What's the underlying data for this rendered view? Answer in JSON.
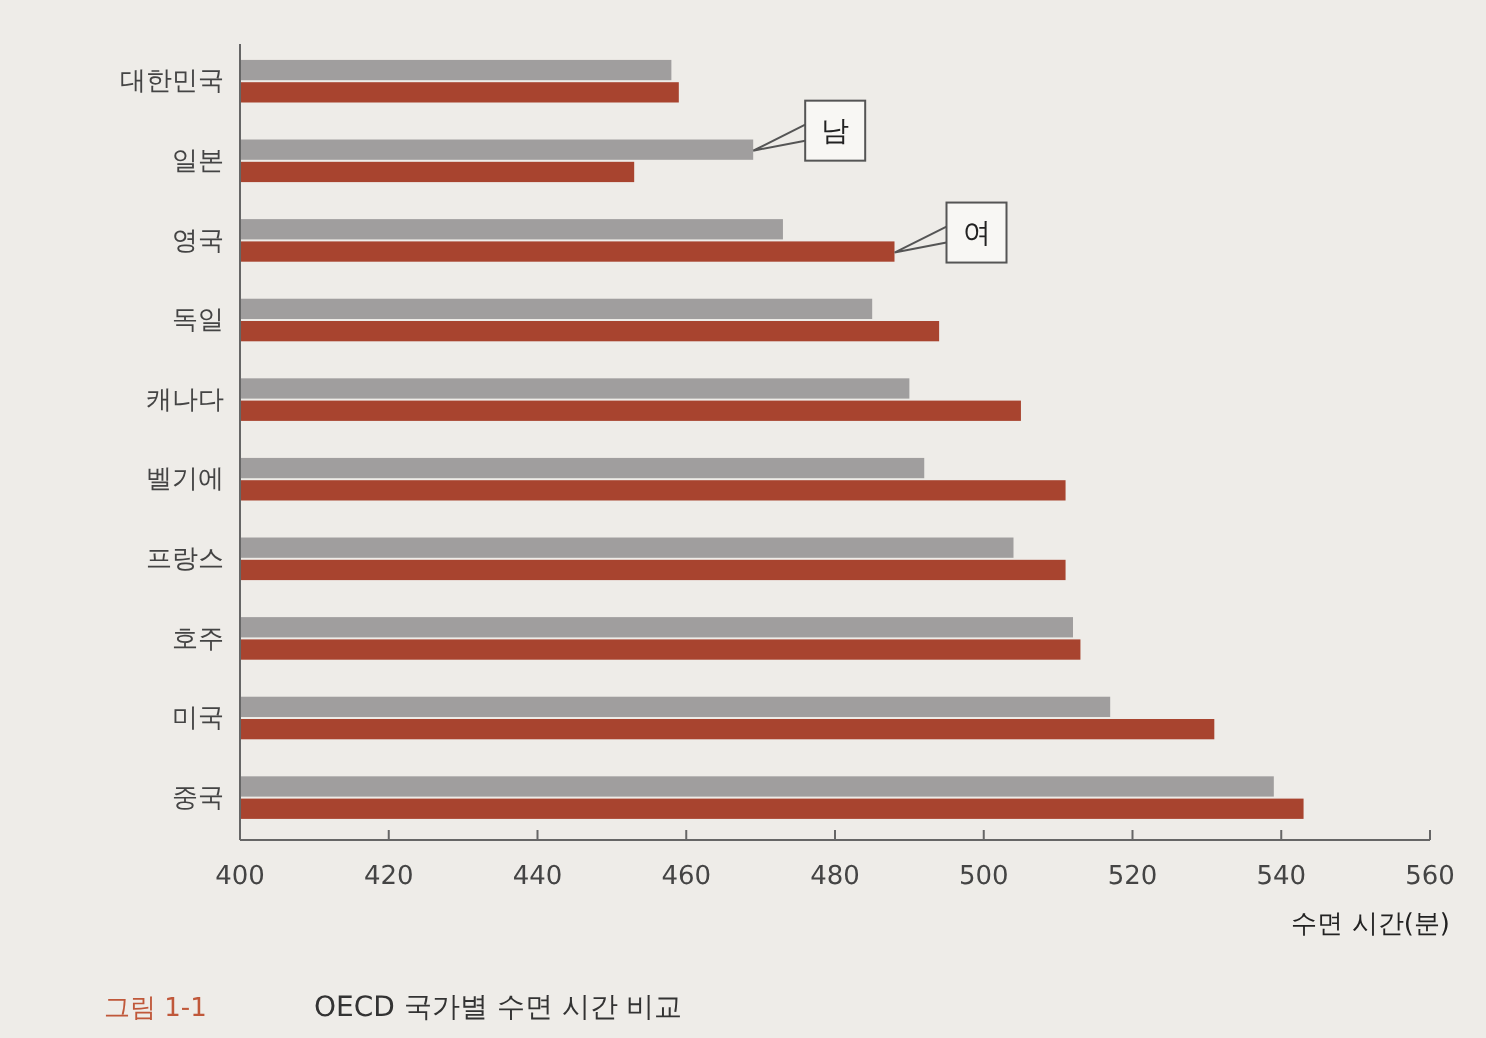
{
  "chart_data": {
    "type": "bar",
    "orientation": "horizontal",
    "title": "OECD 국가별 수면 시간 비교",
    "xlabel": "수면 시간(분)",
    "annotations": [
      "그림 1-1"
    ],
    "categories": [
      "대한민국",
      "일본",
      "영국",
      "독일",
      "캐나다",
      "벨기에",
      "프랑스",
      "호주",
      "미국",
      "중국"
    ],
    "series": [
      {
        "name": "남",
        "color": "#a09e9e",
        "values": [
          458,
          469,
          473,
          485,
          490,
          492,
          504,
          512,
          517,
          539
        ]
      },
      {
        "name": "여",
        "color": "#a8442f",
        "values": [
          459,
          453,
          488,
          494,
          505,
          511,
          511,
          513,
          531,
          543
        ]
      }
    ],
    "xlim": [
      400,
      560
    ],
    "xticks": [
      400,
      420,
      440,
      460,
      480,
      500,
      520,
      540,
      560
    ]
  }
}
